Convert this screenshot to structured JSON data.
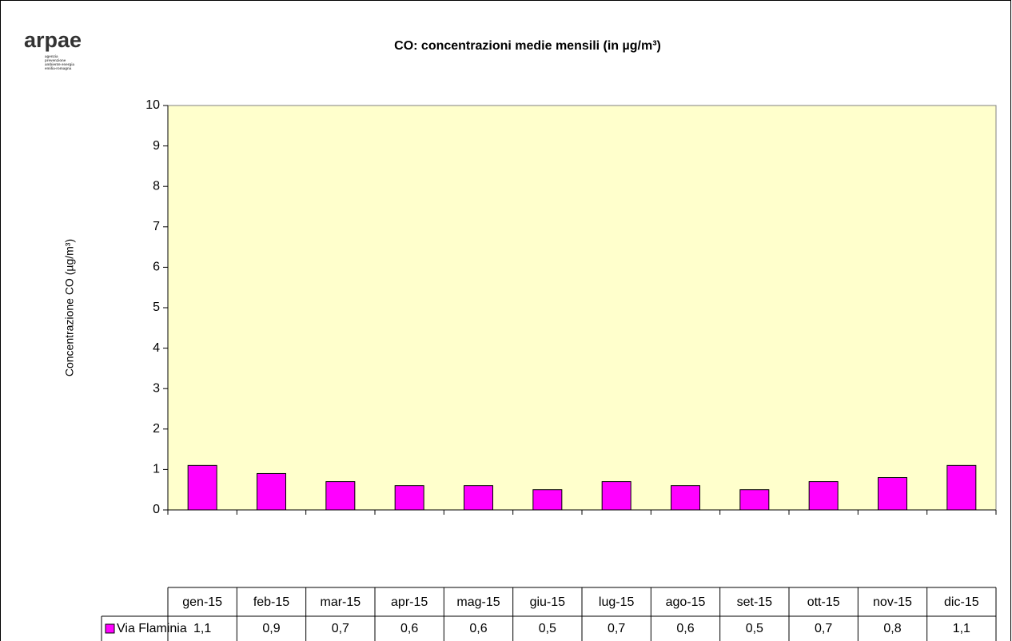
{
  "logo": {
    "name": "arpae",
    "lines": [
      "agenzia",
      "prevenzione",
      "ambiente energia",
      "emilia-romagna"
    ]
  },
  "chart_data": {
    "type": "bar",
    "title": "CO:  concentrazioni medie mensili (in µg/m³)",
    "y_label": "Concentrazione CO (µg/m³)",
    "categories": [
      "gen-15",
      "feb-15",
      "mar-15",
      "apr-15",
      "mag-15",
      "giu-15",
      "lug-15",
      "ago-15",
      "set-15",
      "ott-15",
      "nov-15",
      "dic-15"
    ],
    "series": [
      {
        "name": "Via Flaminia",
        "color": "#ff00ff",
        "values": [
          1.1,
          0.9,
          0.7,
          0.6,
          0.6,
          0.5,
          0.7,
          0.6,
          0.5,
          0.7,
          0.8,
          1.1
        ],
        "value_labels": [
          "1,1",
          "0,9",
          "0,7",
          "0,6",
          "0,6",
          "0,5",
          "0,7",
          "0,6",
          "0,5",
          "0,7",
          "0,8",
          "1,1"
        ]
      }
    ],
    "ylim": [
      0,
      10
    ],
    "yticks": [
      0,
      1,
      2,
      3,
      4,
      5,
      6,
      7,
      8,
      9,
      10
    ],
    "plot_background": "#ffffcc",
    "grid": false
  }
}
